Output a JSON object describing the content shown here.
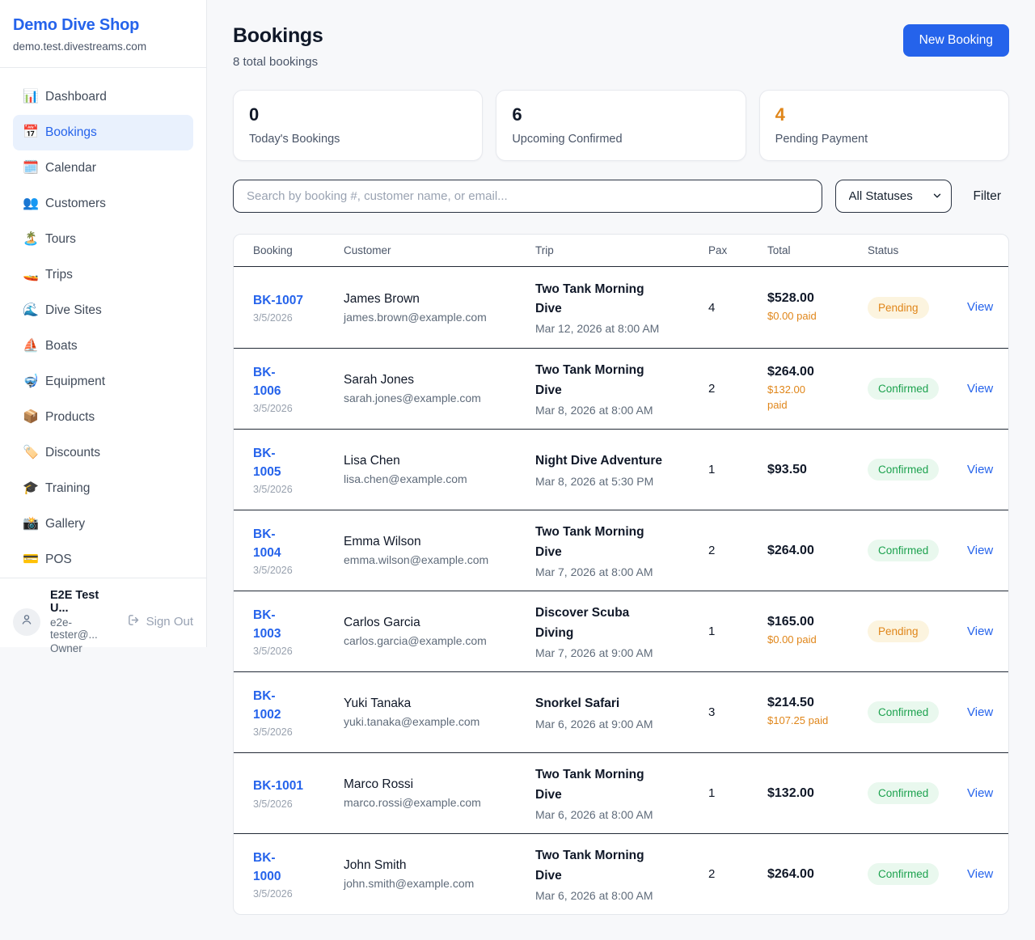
{
  "colors": {
    "accent": "#2563eb",
    "orange": "#e0861a",
    "pending_text": "#e0861a",
    "pending_bg": "#fcf4df",
    "confirmed_text": "#1da24f",
    "confirmed_bg": "#e9f8ee"
  },
  "sidebar": {
    "shop_name": "Demo Dive Shop",
    "domain": "demo.test.divestreams.com",
    "items": [
      {
        "label": "Dashboard",
        "icon": "bar-chart-icon",
        "glyph": "📊",
        "active": false
      },
      {
        "label": "Bookings",
        "icon": "calendar-icon",
        "glyph": "📅",
        "active": true
      },
      {
        "label": "Calendar",
        "icon": "spiral-calendar-icon",
        "glyph": "🗓️",
        "active": false
      },
      {
        "label": "Customers",
        "icon": "people-icon",
        "glyph": "👥",
        "active": false
      },
      {
        "label": "Tours",
        "icon": "island-icon",
        "glyph": "🏝️",
        "active": false
      },
      {
        "label": "Trips",
        "icon": "speedboat-icon",
        "glyph": "🚤",
        "active": false
      },
      {
        "label": "Dive Sites",
        "icon": "wave-icon",
        "glyph": "🌊",
        "active": false
      },
      {
        "label": "Boats",
        "icon": "sailboat-icon",
        "glyph": "⛵",
        "active": false
      },
      {
        "label": "Equipment",
        "icon": "diving-mask-icon",
        "glyph": "🤿",
        "active": false
      },
      {
        "label": "Products",
        "icon": "package-icon",
        "glyph": "📦",
        "active": false
      },
      {
        "label": "Discounts",
        "icon": "label-tag-icon",
        "glyph": "🏷️",
        "active": false
      },
      {
        "label": "Training",
        "icon": "graduation-cap-icon",
        "glyph": "🎓",
        "active": false
      },
      {
        "label": "Gallery",
        "icon": "camera-flash-icon",
        "glyph": "📸",
        "active": false
      },
      {
        "label": "POS",
        "icon": "credit-card-icon",
        "glyph": "💳",
        "active": false
      }
    ],
    "user": {
      "name": "E2E Test U...",
      "email": "e2e-tester@...",
      "role": "Owner",
      "sign_out_label": "Sign Out"
    }
  },
  "header": {
    "title": "Bookings",
    "subtitle": "8 total bookings",
    "new_booking_label": "New Booking"
  },
  "stats": [
    {
      "value": "0",
      "label": "Today's Bookings",
      "value_color": "#101828"
    },
    {
      "value": "6",
      "label": "Upcoming Confirmed",
      "value_color": "#101828"
    },
    {
      "value": "4",
      "label": "Pending Payment",
      "value_color": "#e0861a"
    }
  ],
  "filters": {
    "search_placeholder": "Search by booking #, customer name, or email...",
    "status_select_value": "All Statuses",
    "filter_label": "Filter"
  },
  "table": {
    "columns": [
      "Booking",
      "Customer",
      "Trip",
      "Pax",
      "Total",
      "Status"
    ],
    "view_label": "View",
    "rows": [
      {
        "id_lines": [
          "BK-1007"
        ],
        "booked_date": "3/5/2026",
        "customer": "James Brown",
        "email": "james.brown@example.com",
        "trip_lines": [
          "Two Tank Morning",
          "Dive"
        ],
        "trip_date": "Mar 12, 2026 at 8:00 AM",
        "pax": "4",
        "total": "$528.00",
        "paid_lines": [
          "$0.00 paid"
        ],
        "status": "Pending"
      },
      {
        "id_lines": [
          "BK-",
          "1006"
        ],
        "booked_date": "3/5/2026",
        "customer": "Sarah Jones",
        "email": "sarah.jones@example.com",
        "trip_lines": [
          "Two Tank Morning",
          "Dive"
        ],
        "trip_date": "Mar 8, 2026 at 8:00 AM",
        "pax": "2",
        "total": "$264.00",
        "paid_lines": [
          "$132.00",
          "paid"
        ],
        "status": "Confirmed"
      },
      {
        "id_lines": [
          "BK-",
          "1005"
        ],
        "booked_date": "3/5/2026",
        "customer": "Lisa Chen",
        "email": "lisa.chen@example.com",
        "trip_lines": [
          "Night Dive Adventure"
        ],
        "trip_date": "Mar 8, 2026 at 5:30 PM",
        "pax": "1",
        "total": "$93.50",
        "paid_lines": [],
        "status": "Confirmed"
      },
      {
        "id_lines": [
          "BK-",
          "1004"
        ],
        "booked_date": "3/5/2026",
        "customer": "Emma Wilson",
        "email": "emma.wilson@example.com",
        "trip_lines": [
          "Two Tank Morning",
          "Dive"
        ],
        "trip_date": "Mar 7, 2026 at 8:00 AM",
        "pax": "2",
        "total": "$264.00",
        "paid_lines": [],
        "status": "Confirmed"
      },
      {
        "id_lines": [
          "BK-",
          "1003"
        ],
        "booked_date": "3/5/2026",
        "customer": "Carlos Garcia",
        "email": "carlos.garcia@example.com",
        "trip_lines": [
          "Discover Scuba",
          "Diving"
        ],
        "trip_date": "Mar 7, 2026 at 9:00 AM",
        "pax": "1",
        "total": "$165.00",
        "paid_lines": [
          "$0.00 paid"
        ],
        "status": "Pending"
      },
      {
        "id_lines": [
          "BK-",
          "1002"
        ],
        "booked_date": "3/5/2026",
        "customer": "Yuki Tanaka",
        "email": "yuki.tanaka@example.com",
        "trip_lines": [
          "Snorkel Safari"
        ],
        "trip_date": "Mar 6, 2026 at 9:00 AM",
        "pax": "3",
        "total": "$214.50",
        "paid_lines": [
          "$107.25 paid"
        ],
        "status": "Confirmed"
      },
      {
        "id_lines": [
          "BK-1001"
        ],
        "booked_date": "3/5/2026",
        "customer": "Marco Rossi",
        "email": "marco.rossi@example.com",
        "trip_lines": [
          "Two Tank Morning",
          "Dive"
        ],
        "trip_date": "Mar 6, 2026 at 8:00 AM",
        "pax": "1",
        "total": "$132.00",
        "paid_lines": [],
        "status": "Confirmed"
      },
      {
        "id_lines": [
          "BK-",
          "1000"
        ],
        "booked_date": "3/5/2026",
        "customer": "John Smith",
        "email": "john.smith@example.com",
        "trip_lines": [
          "Two Tank Morning",
          "Dive"
        ],
        "trip_date": "Mar 6, 2026 at 8:00 AM",
        "pax": "2",
        "total": "$264.00",
        "paid_lines": [],
        "status": "Confirmed"
      }
    ]
  }
}
